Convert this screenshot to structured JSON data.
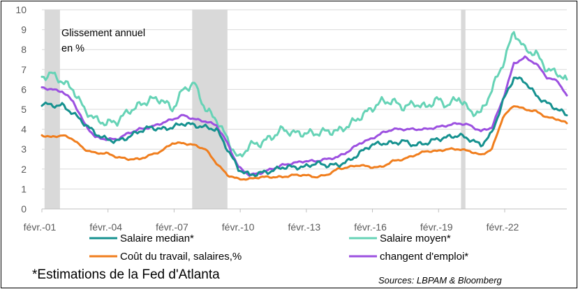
{
  "chart_data": {
    "type": "line",
    "annotation": [
      "Glissement annuel",
      "en %"
    ],
    "ylim": [
      0,
      10
    ],
    "y_ticks": [
      "0",
      "1",
      "2",
      "3",
      "4",
      "5",
      "6",
      "7",
      "8",
      "9",
      "10"
    ],
    "x_range": [
      2001.08,
      2024.9
    ],
    "x_ticks": [
      {
        "label": "févr.-01",
        "x": 2001.08
      },
      {
        "label": "févr.-04",
        "x": 2004.08
      },
      {
        "label": "févr.-07",
        "x": 2007.08
      },
      {
        "label": "févr.-10",
        "x": 2010.08
      },
      {
        "label": "févr.-13",
        "x": 2013.08
      },
      {
        "label": "févr.-16",
        "x": 2016.08
      },
      {
        "label": "févr.-19",
        "x": 2019.08
      },
      {
        "label": "févr.-22",
        "x": 2022.08
      }
    ],
    "recession_bands": [
      [
        2001.2,
        2001.9
      ],
      [
        2007.9,
        2009.5
      ],
      [
        2020.1,
        2020.3
      ]
    ],
    "grid": true,
    "legend_position": "bottom",
    "colors": {
      "salaire_median": "#15918F",
      "salaire_moyen": "#66D3B6",
      "cout_travail": "#F07E1E",
      "changent_emploi": "#9C50E0",
      "recession": "#D9D9D9",
      "grid": "#D9D9D9"
    },
    "series": [
      {
        "name": "Salaire median*",
        "key": "salaire_median",
        "points": [
          [
            2001.08,
            5.3
          ],
          [
            2001.5,
            5.2
          ],
          [
            2002.0,
            5.2
          ],
          [
            2002.5,
            4.8
          ],
          [
            2003.0,
            4.3
          ],
          [
            2003.5,
            3.8
          ],
          [
            2004.0,
            3.5
          ],
          [
            2004.5,
            3.4
          ],
          [
            2005.0,
            3.6
          ],
          [
            2005.5,
            3.9
          ],
          [
            2006.0,
            4.1
          ],
          [
            2006.5,
            4.0
          ],
          [
            2007.0,
            4.1
          ],
          [
            2007.5,
            4.3
          ],
          [
            2008.0,
            4.2
          ],
          [
            2008.5,
            4.1
          ],
          [
            2009.0,
            4.0
          ],
          [
            2009.5,
            3.0
          ],
          [
            2010.0,
            2.0
          ],
          [
            2010.5,
            1.7
          ],
          [
            2011.0,
            1.8
          ],
          [
            2011.5,
            1.9
          ],
          [
            2012.0,
            2.1
          ],
          [
            2012.5,
            2.1
          ],
          [
            2013.0,
            2.1
          ],
          [
            2013.5,
            2.3
          ],
          [
            2014.0,
            2.2
          ],
          [
            2014.5,
            2.2
          ],
          [
            2015.0,
            2.4
          ],
          [
            2015.5,
            2.8
          ],
          [
            2016.0,
            3.2
          ],
          [
            2016.5,
            3.3
          ],
          [
            2017.0,
            3.3
          ],
          [
            2017.5,
            3.4
          ],
          [
            2018.0,
            3.2
          ],
          [
            2018.5,
            3.3
          ],
          [
            2019.0,
            3.5
          ],
          [
            2019.5,
            3.6
          ],
          [
            2020.0,
            3.7
          ],
          [
            2020.5,
            3.5
          ],
          [
            2021.0,
            3.2
          ],
          [
            2021.5,
            3.8
          ],
          [
            2022.0,
            5.4
          ],
          [
            2022.5,
            6.6
          ],
          [
            2023.0,
            6.4
          ],
          [
            2023.5,
            5.7
          ],
          [
            2024.0,
            5.3
          ],
          [
            2024.5,
            5.0
          ],
          [
            2024.9,
            4.7
          ]
        ]
      },
      {
        "name": "Salaire moyen*",
        "key": "salaire_moyen",
        "points": [
          [
            2001.08,
            6.6
          ],
          [
            2001.5,
            6.8
          ],
          [
            2002.0,
            6.4
          ],
          [
            2002.5,
            6.0
          ],
          [
            2003.0,
            5.0
          ],
          [
            2003.5,
            4.5
          ],
          [
            2004.0,
            4.3
          ],
          [
            2004.5,
            4.4
          ],
          [
            2005.0,
            4.9
          ],
          [
            2005.5,
            5.2
          ],
          [
            2006.0,
            5.5
          ],
          [
            2006.5,
            5.5
          ],
          [
            2007.0,
            5.0
          ],
          [
            2007.5,
            6.0
          ],
          [
            2008.0,
            6.3
          ],
          [
            2008.5,
            5.0
          ],
          [
            2009.0,
            4.5
          ],
          [
            2009.5,
            3.5
          ],
          [
            2010.0,
            2.5
          ],
          [
            2010.5,
            3.2
          ],
          [
            2011.0,
            3.3
          ],
          [
            2011.5,
            3.6
          ],
          [
            2012.0,
            4.0
          ],
          [
            2012.5,
            3.8
          ],
          [
            2013.0,
            3.8
          ],
          [
            2013.5,
            3.8
          ],
          [
            2014.0,
            3.9
          ],
          [
            2014.5,
            3.9
          ],
          [
            2015.0,
            4.2
          ],
          [
            2015.5,
            4.6
          ],
          [
            2016.0,
            5.0
          ],
          [
            2016.5,
            5.4
          ],
          [
            2017.0,
            5.4
          ],
          [
            2017.5,
            5.1
          ],
          [
            2018.0,
            5.3
          ],
          [
            2018.5,
            5.1
          ],
          [
            2019.0,
            5.5
          ],
          [
            2019.5,
            5.2
          ],
          [
            2020.0,
            5.6
          ],
          [
            2020.5,
            4.9
          ],
          [
            2021.0,
            4.8
          ],
          [
            2021.5,
            6.0
          ],
          [
            2022.0,
            7.3
          ],
          [
            2022.5,
            8.9
          ],
          [
            2023.0,
            8.0
          ],
          [
            2023.5,
            7.8
          ],
          [
            2024.0,
            7.0
          ],
          [
            2024.5,
            6.8
          ],
          [
            2024.9,
            6.5
          ]
        ]
      },
      {
        "name": "Coût du travail, salaires,%",
        "key": "cout_travail",
        "points": [
          [
            2001.08,
            3.7
          ],
          [
            2001.5,
            3.6
          ],
          [
            2002.0,
            3.7
          ],
          [
            2002.5,
            3.5
          ],
          [
            2003.0,
            3.0
          ],
          [
            2003.5,
            2.8
          ],
          [
            2004.0,
            2.8
          ],
          [
            2004.5,
            2.6
          ],
          [
            2005.0,
            2.5
          ],
          [
            2005.5,
            2.5
          ],
          [
            2006.0,
            2.7
          ],
          [
            2006.5,
            2.9
          ],
          [
            2007.0,
            3.3
          ],
          [
            2007.5,
            3.3
          ],
          [
            2008.0,
            3.2
          ],
          [
            2008.5,
            3.0
          ],
          [
            2009.0,
            2.3
          ],
          [
            2009.5,
            1.7
          ],
          [
            2010.0,
            1.5
          ],
          [
            2010.5,
            1.5
          ],
          [
            2011.0,
            1.6
          ],
          [
            2011.5,
            1.6
          ],
          [
            2012.0,
            1.6
          ],
          [
            2012.5,
            1.7
          ],
          [
            2013.0,
            1.7
          ],
          [
            2013.5,
            1.6
          ],
          [
            2014.0,
            1.7
          ],
          [
            2014.5,
            2.0
          ],
          [
            2015.0,
            2.1
          ],
          [
            2015.5,
            2.2
          ],
          [
            2016.0,
            2.1
          ],
          [
            2016.5,
            2.1
          ],
          [
            2017.0,
            2.4
          ],
          [
            2017.5,
            2.5
          ],
          [
            2018.0,
            2.7
          ],
          [
            2018.5,
            2.9
          ],
          [
            2019.0,
            2.9
          ],
          [
            2019.5,
            3.0
          ],
          [
            2020.0,
            3.0
          ],
          [
            2020.5,
            2.9
          ],
          [
            2021.0,
            2.7
          ],
          [
            2021.5,
            3.0
          ],
          [
            2022.0,
            4.6
          ],
          [
            2022.5,
            5.2
          ],
          [
            2023.0,
            5.0
          ],
          [
            2023.5,
            4.9
          ],
          [
            2024.0,
            4.6
          ],
          [
            2024.5,
            4.5
          ],
          [
            2024.9,
            4.3
          ]
        ]
      },
      {
        "name": "changent d'emploi*",
        "key": "changent_emploi",
        "points": [
          [
            2001.08,
            6.1
          ],
          [
            2001.5,
            6.0
          ],
          [
            2002.0,
            5.9
          ],
          [
            2002.5,
            5.4
          ],
          [
            2003.0,
            4.3
          ],
          [
            2003.5,
            3.6
          ],
          [
            2004.0,
            3.5
          ],
          [
            2004.5,
            3.5
          ],
          [
            2005.0,
            3.8
          ],
          [
            2005.5,
            4.0
          ],
          [
            2006.0,
            4.1
          ],
          [
            2006.5,
            4.3
          ],
          [
            2007.0,
            4.5
          ],
          [
            2007.5,
            4.7
          ],
          [
            2008.0,
            4.5
          ],
          [
            2008.5,
            4.4
          ],
          [
            2009.0,
            4.2
          ],
          [
            2009.5,
            3.3
          ],
          [
            2010.0,
            2.1
          ],
          [
            2010.5,
            1.7
          ],
          [
            2011.0,
            1.8
          ],
          [
            2011.5,
            2.0
          ],
          [
            2012.0,
            2.2
          ],
          [
            2012.5,
            2.3
          ],
          [
            2013.0,
            2.4
          ],
          [
            2013.5,
            2.4
          ],
          [
            2014.0,
            2.5
          ],
          [
            2014.5,
            2.6
          ],
          [
            2015.0,
            2.9
          ],
          [
            2015.5,
            3.3
          ],
          [
            2016.0,
            3.5
          ],
          [
            2016.5,
            3.8
          ],
          [
            2017.0,
            4.0
          ],
          [
            2017.5,
            4.0
          ],
          [
            2018.0,
            4.0
          ],
          [
            2018.5,
            4.0
          ],
          [
            2019.0,
            4.1
          ],
          [
            2019.5,
            4.2
          ],
          [
            2020.0,
            4.3
          ],
          [
            2020.5,
            4.2
          ],
          [
            2021.0,
            3.9
          ],
          [
            2021.5,
            4.1
          ],
          [
            2022.0,
            5.5
          ],
          [
            2022.5,
            7.3
          ],
          [
            2023.0,
            7.6
          ],
          [
            2023.5,
            7.3
          ],
          [
            2024.0,
            6.6
          ],
          [
            2024.5,
            6.4
          ],
          [
            2024.9,
            5.7
          ]
        ]
      }
    ]
  },
  "footnote": "*Estimations de la Fed d'Atlanta",
  "source": "Sources: LBPAM & Bloomberg"
}
